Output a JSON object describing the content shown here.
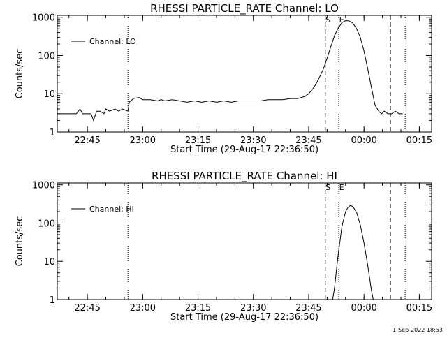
{
  "chart_data": [
    {
      "type": "line",
      "title": "RHESSI PARTICLE_RATE Channel: LO",
      "xlabel": "Start Time (29-Aug-17 22:36:50)",
      "ylabel": "Counts/sec",
      "yscale": "log",
      "ylim": [
        1,
        1000
      ],
      "ytick_labels": [
        "1",
        "10",
        "100",
        "1000"
      ],
      "xlim": [
        "22:36:50",
        "00:18:20"
      ],
      "xtick_labels": [
        "22:45",
        "23:00",
        "23:15",
        "23:30",
        "23:45",
        "00:00",
        "00:15"
      ],
      "legend": {
        "placement": "top-left",
        "entries": [
          "Channel: LO"
        ]
      },
      "grid": false,
      "markers": {
        "dotted": [
          "22:56:00",
          "23:53:10",
          "00:11:10"
        ],
        "dashed": [
          "23:49:30",
          "00:07:10"
        ],
        "labels": [
          {
            "text": "S",
            "at": "23:49:30"
          },
          {
            "text": "E",
            "at": "23:53:10"
          }
        ]
      },
      "series": [
        {
          "name": "Channel: LO",
          "x": [
            "22:36:50",
            "22:42:00",
            "22:43:00",
            "22:43:40",
            "22:44:30",
            "22:46:00",
            "22:46:40",
            "22:47:30",
            "22:48:30",
            "22:49:30",
            "22:50:00",
            "22:51:00",
            "22:52:30",
            "22:53:30",
            "22:54:30",
            "22:56:00",
            "22:56:20",
            "22:57:30",
            "22:59:00",
            "23:00:00",
            "23:02:00",
            "23:04:00",
            "23:05:00",
            "23:06:00",
            "23:08:00",
            "23:10:00",
            "23:12:00",
            "23:14:00",
            "23:16:00",
            "23:18:00",
            "23:20:00",
            "23:22:00",
            "23:24:00",
            "23:26:00",
            "23:28:00",
            "23:30:00",
            "23:32:00",
            "23:34:00",
            "23:36:00",
            "23:38:00",
            "23:40:00",
            "23:42:00",
            "23:44:00",
            "23:45:00",
            "23:46:00",
            "23:47:00",
            "23:48:00",
            "23:49:00",
            "23:50:00",
            "23:51:00",
            "23:52:00",
            "23:53:00",
            "23:54:00",
            "23:55:00",
            "23:56:00",
            "23:57:00",
            "23:58:00",
            "23:59:00",
            "00:00:00",
            "00:01:00",
            "00:02:00",
            "00:03:00",
            "00:04:00",
            "00:04:45",
            "00:05:30",
            "00:06:30",
            "00:07:30",
            "00:08:30",
            "00:09:30",
            "00:10:30"
          ],
          "y": [
            3,
            3,
            4,
            3,
            3,
            3,
            2,
            3.5,
            3.5,
            3,
            4,
            3.5,
            4,
            3.5,
            4,
            3.5,
            6,
            7.5,
            8,
            7,
            7,
            6.5,
            7,
            6.5,
            7,
            6.5,
            6,
            6.5,
            6,
            6.5,
            6,
            6.5,
            6,
            6.5,
            6.5,
            6.5,
            6.5,
            7,
            7,
            7,
            7.5,
            7.5,
            8.5,
            10,
            13,
            18,
            28,
            45,
            85,
            170,
            330,
            520,
            720,
            820,
            800,
            700,
            500,
            300,
            130,
            45,
            15,
            5,
            3.5,
            3,
            3.5,
            3,
            3,
            3.5,
            3,
            3
          ]
        }
      ]
    },
    {
      "type": "line",
      "title": "RHESSI PARTICLE_RATE Channel: HI",
      "xlabel": "Start Time (29-Aug-17 22:36:50)",
      "ylabel": "Counts/sec",
      "yscale": "log",
      "ylim": [
        1,
        1000
      ],
      "ytick_labels": [
        "1",
        "10",
        "100",
        "1000"
      ],
      "xlim": [
        "22:36:50",
        "00:18:20"
      ],
      "xtick_labels": [
        "22:45",
        "23:00",
        "23:15",
        "23:30",
        "23:45",
        "00:00",
        "00:15"
      ],
      "legend": {
        "placement": "top-left",
        "entries": [
          "Channel: HI"
        ]
      },
      "grid": false,
      "markers": {
        "dotted": [
          "22:56:00",
          "23:53:10",
          "00:11:10"
        ],
        "dashed": [
          "23:49:30",
          "00:07:10"
        ],
        "labels": [
          {
            "text": "S",
            "at": "23:49:30"
          },
          {
            "text": "E",
            "at": "23:53:10"
          }
        ]
      },
      "series": [
        {
          "name": "Channel: HI",
          "x": [
            "23:51:30",
            "23:52:00",
            "23:53:00",
            "23:54:00",
            "23:55:00",
            "23:55:40",
            "23:56:20",
            "23:57:00",
            "23:58:00",
            "23:59:00",
            "00:00:00",
            "00:01:00",
            "00:02:00",
            "00:02:30"
          ],
          "y": [
            1,
            2,
            15,
            80,
            200,
            260,
            290,
            270,
            190,
            90,
            30,
            8,
            1.8,
            1
          ]
        }
      ]
    }
  ],
  "footer": {
    "stamp": "1-Sep-2022 18:53"
  }
}
